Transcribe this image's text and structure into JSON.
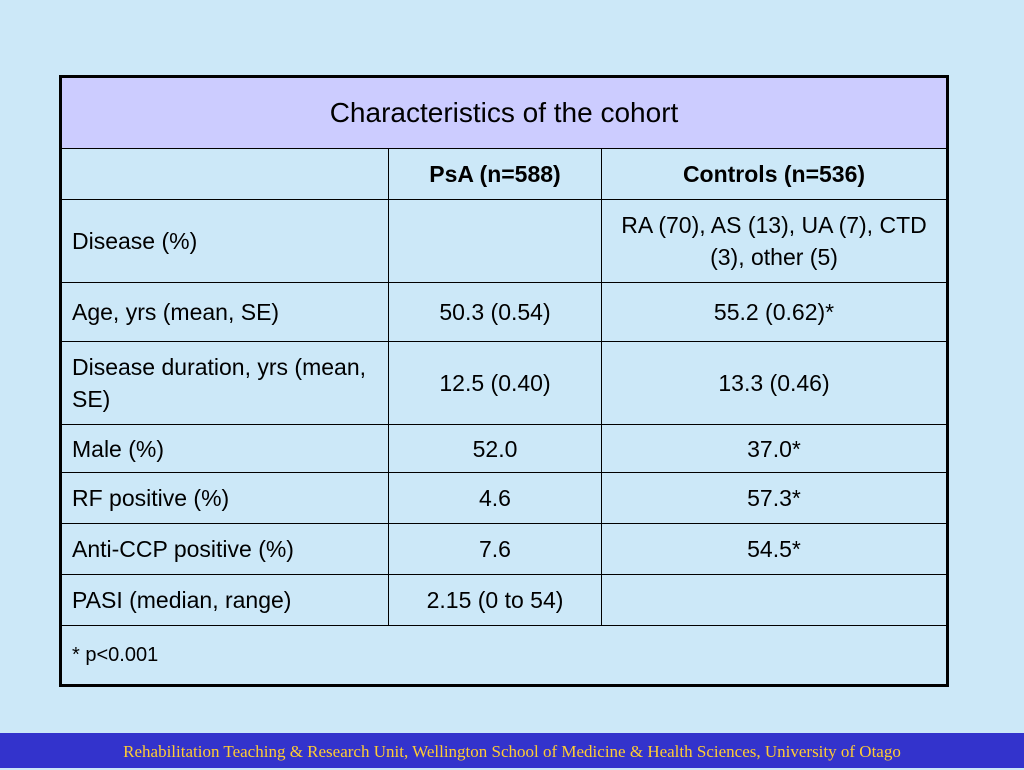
{
  "table": {
    "title": "Characteristics of the cohort",
    "header": {
      "blank": "",
      "psa": "PsA (n=588)",
      "controls": "Controls (n=536)"
    },
    "rows": [
      {
        "label": "Disease (%)",
        "psa": "",
        "controls": "RA (70), AS (13), UA (7), CTD (3), other (5)"
      },
      {
        "label": "Age, yrs (mean, SE)",
        "psa": "50.3 (0.54)",
        "controls": "55.2 (0.62)*"
      },
      {
        "label": "Disease duration, yrs (mean, SE)",
        "psa": "12.5 (0.40)",
        "controls": "13.3 (0.46)"
      },
      {
        "label": "Male (%)",
        "psa": "52.0",
        "controls": "37.0*"
      },
      {
        "label": "RF positive (%)",
        "psa": "4.6",
        "controls": "57.3*"
      },
      {
        "label": "Anti-CCP positive (%)",
        "psa": "7.6",
        "controls": "54.5*"
      },
      {
        "label": "PASI (median, range)",
        "psa": "2.15 (0 to 54)",
        "controls": ""
      }
    ],
    "footnote": "* p<0.001"
  },
  "footer": {
    "text": "Rehabilitation Teaching & Research Unit, Wellington School of Medicine & Health Sciences, University of Otago"
  },
  "colors": {
    "background": "#cce8f8",
    "title_fill": "#ccccff",
    "footer_bar": "#3333cc",
    "footer_text": "#ffcc33"
  }
}
